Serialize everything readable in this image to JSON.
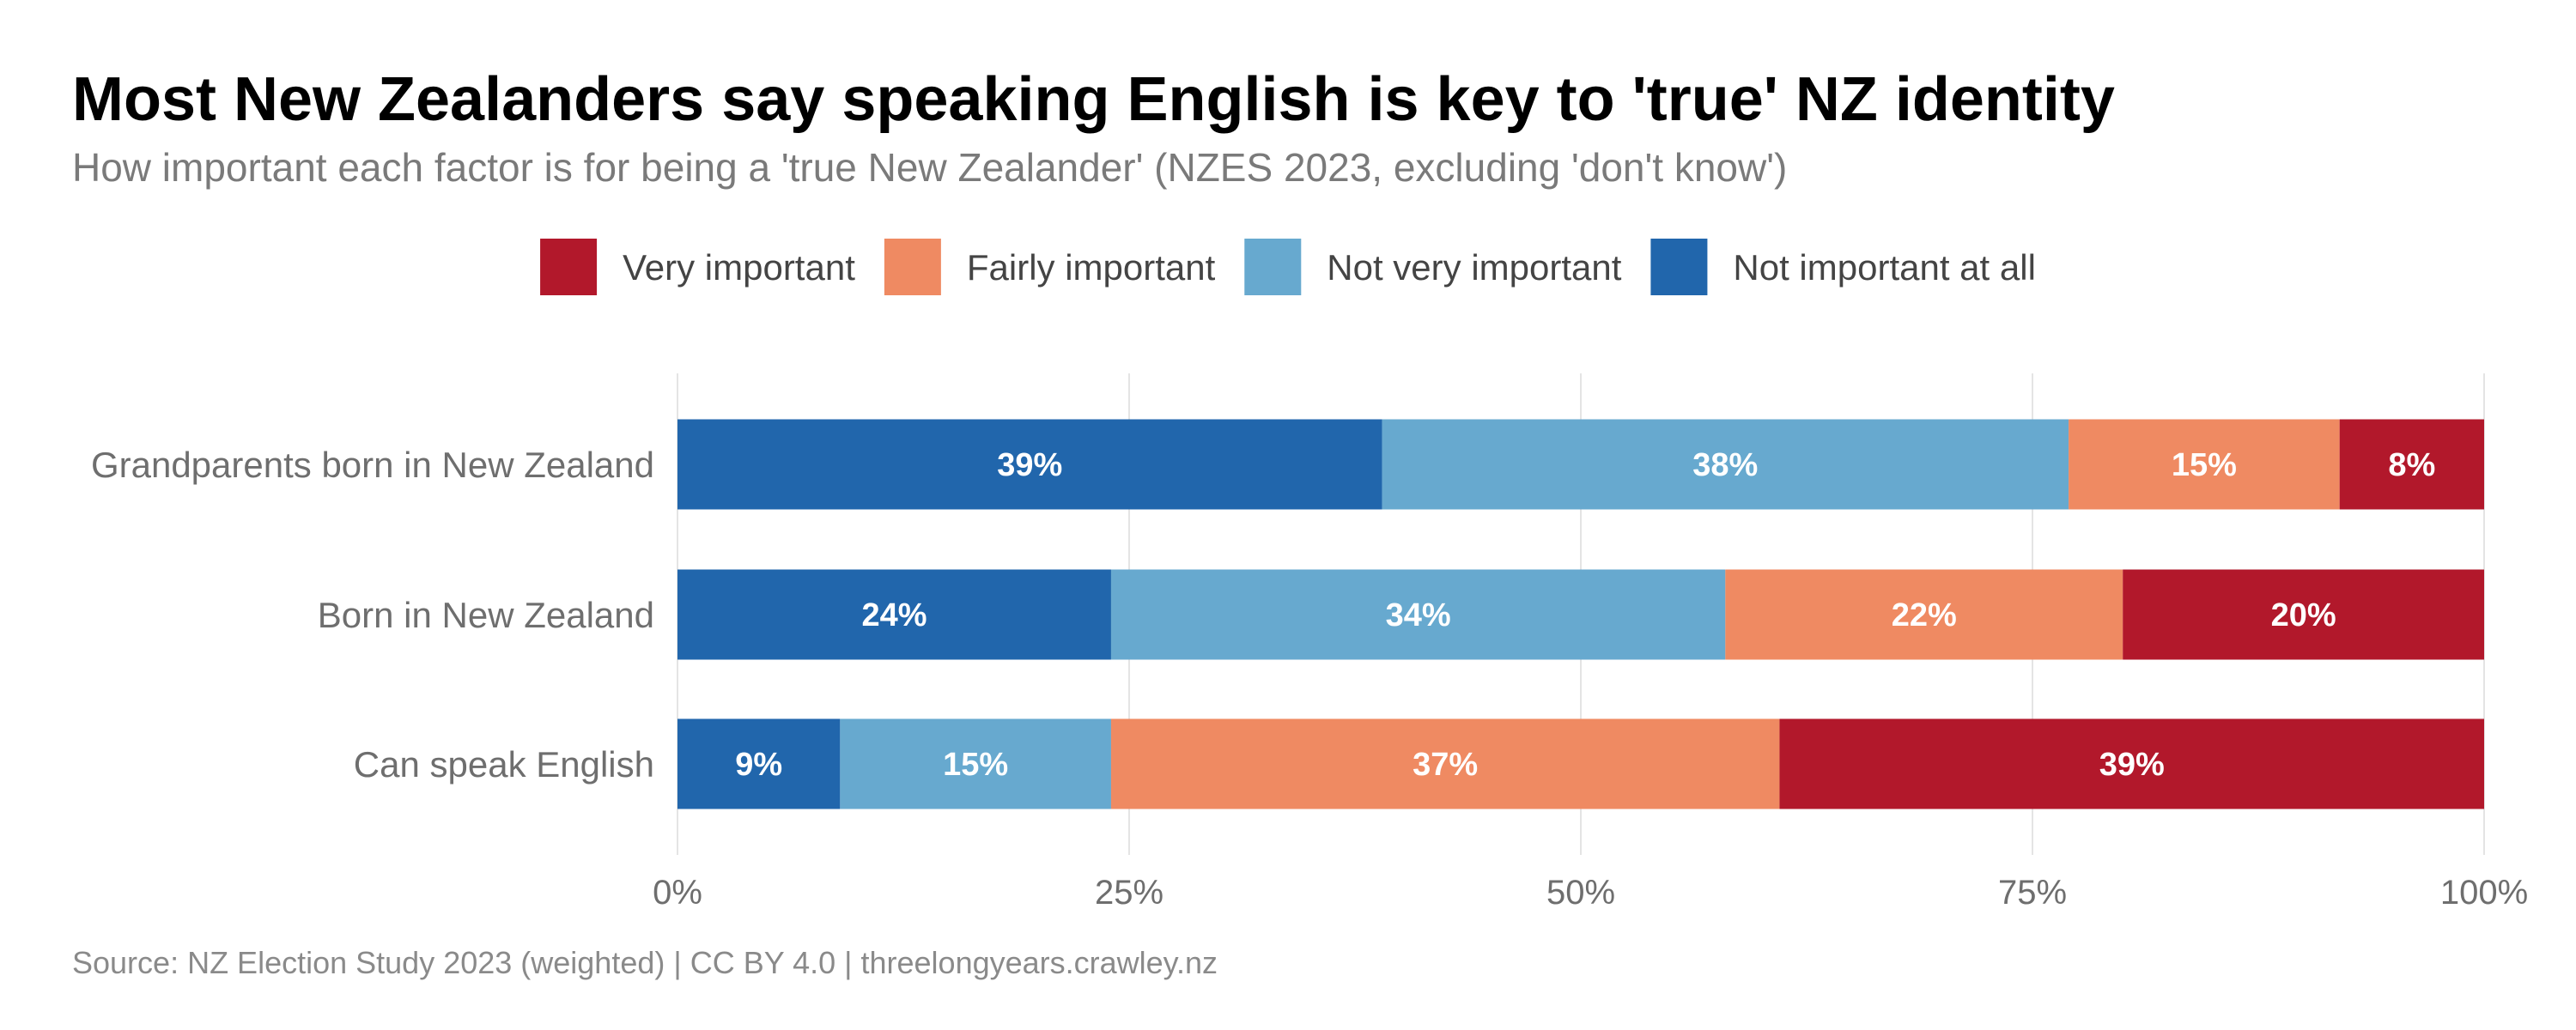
{
  "chart_data": {
    "type": "bar",
    "orientation": "horizontal",
    "stacked": true,
    "title": "Most New Zealanders say speaking English is key to 'true' NZ identity",
    "subtitle": "How important each factor is for being a 'true New Zealander' (NZES 2023, excluding 'don't know')",
    "caption": "Source: NZ Election Study 2023 (weighted) | CC BY 4.0 | threelongyears.crawley.nz",
    "categories": [
      "Grandparents born in New Zealand",
      "Born in New Zealand",
      "Can speak English"
    ],
    "series": [
      {
        "name": "Not important at all",
        "color": "#2166ac",
        "values": [
          39,
          24,
          9
        ],
        "labels": [
          "39%",
          "24%",
          "9%"
        ]
      },
      {
        "name": "Not very important",
        "color": "#67a9cf",
        "values": [
          38,
          34,
          15
        ],
        "labels": [
          "38%",
          "34%",
          "15%"
        ]
      },
      {
        "name": "Fairly important",
        "color": "#ef8a62",
        "values": [
          15,
          22,
          37
        ],
        "labels": [
          "15%",
          "22%",
          "37%"
        ]
      },
      {
        "name": "Very important",
        "color": "#b2182b",
        "values": [
          8,
          20,
          39
        ],
        "labels": [
          "8%",
          "20%",
          "39%"
        ]
      }
    ],
    "legend": {
      "position": "top",
      "order": [
        "Very important",
        "Fairly important",
        "Not very important",
        "Not important at all"
      ]
    },
    "xlim": [
      0,
      100
    ],
    "x_ticks": [
      0,
      25,
      50,
      75,
      100
    ],
    "x_tick_labels": [
      "0%",
      "25%",
      "50%",
      "75%",
      "100%"
    ],
    "grid": true
  }
}
